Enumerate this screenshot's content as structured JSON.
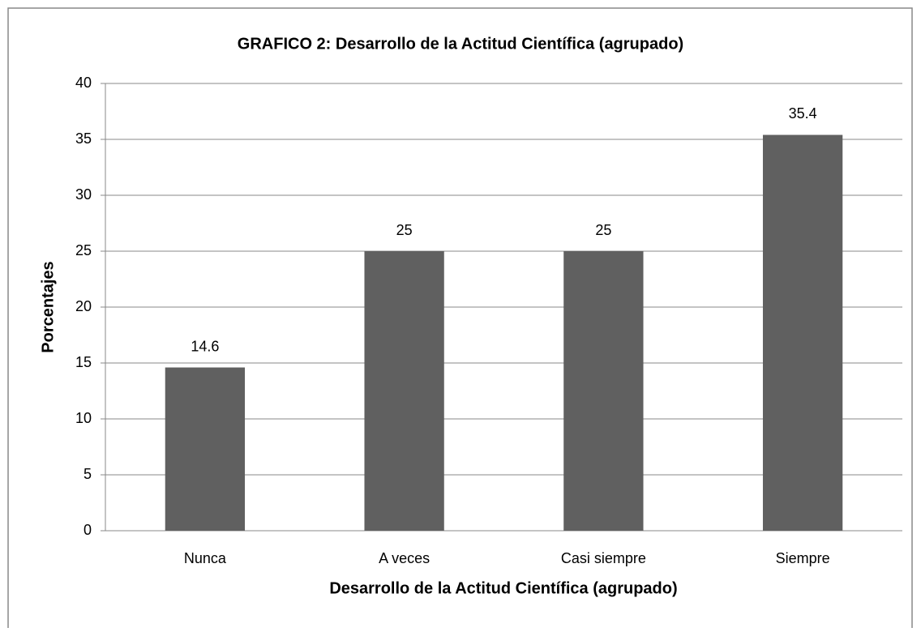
{
  "chart_data": {
    "type": "bar",
    "title": "GRAFICO 2: Desarrollo de la Actitud Científica (agrupado)",
    "x_label": "Desarrollo de la Actitud Científica (agrupado)",
    "y_label": "Porcentajes",
    "categories": [
      "Nunca",
      "A veces",
      "Casi siempre",
      "Siempre"
    ],
    "values": [
      14.6,
      25,
      25,
      35.4
    ],
    "color": "#606060",
    "ylim": [
      0,
      40
    ],
    "yticks": [
      0,
      5,
      10,
      15,
      20,
      25,
      30,
      35,
      40
    ],
    "grid": true
  }
}
